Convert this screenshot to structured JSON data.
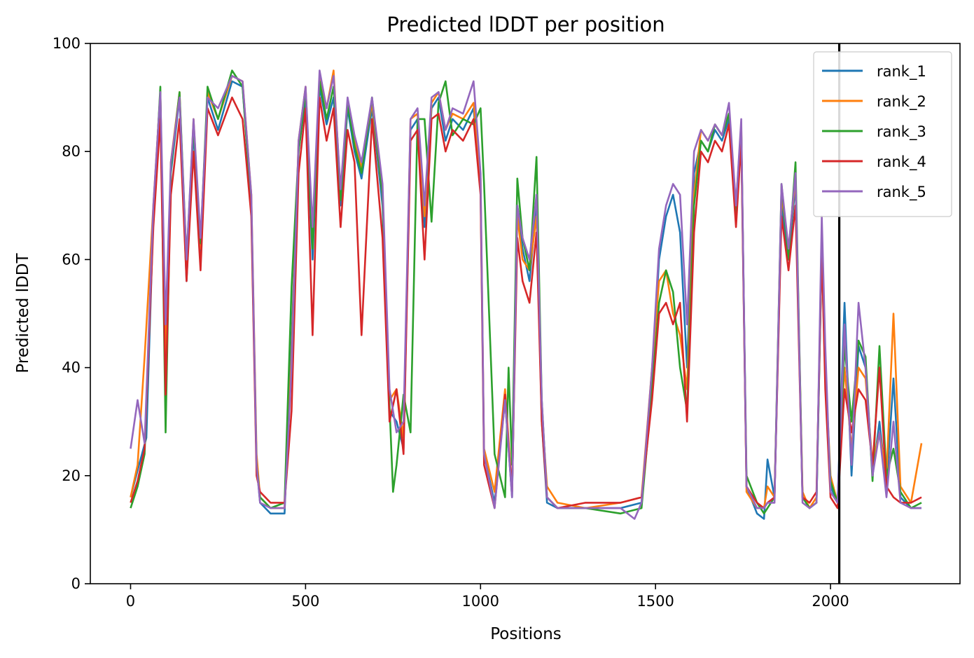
{
  "chart_data": {
    "type": "line",
    "title": "Predicted lDDT per position",
    "xlabel": "Positions",
    "ylabel": "Predicted lDDT",
    "xlim": [
      -115,
      2370
    ],
    "ylim": [
      0,
      100
    ],
    "xticks": [
      0,
      500,
      1000,
      1500,
      2000
    ],
    "yticks": [
      0,
      20,
      40,
      60,
      80,
      100
    ],
    "grid": false,
    "legend_position": "top-right",
    "vertical_line_x": 2025,
    "vertical_line_color": "#000000",
    "series": [
      {
        "name": "rank_1",
        "color": "#1f77b4",
        "x": [
          0,
          20,
          45,
          65,
          85,
          100,
          115,
          140,
          160,
          180,
          200,
          220,
          250,
          290,
          320,
          345,
          360,
          370,
          400,
          440,
          460,
          480,
          500,
          520,
          540,
          560,
          580,
          600,
          620,
          640,
          660,
          690,
          720,
          740,
          760,
          780,
          800,
          820,
          840,
          860,
          880,
          900,
          920,
          950,
          980,
          1000,
          1010,
          1040,
          1070,
          1090,
          1105,
          1120,
          1140,
          1160,
          1175,
          1190,
          1220,
          1300,
          1400,
          1460,
          1490,
          1510,
          1530,
          1550,
          1570,
          1590,
          1610,
          1630,
          1650,
          1670,
          1690,
          1710,
          1730,
          1745,
          1760,
          1790,
          1810,
          1820,
          1840,
          1860,
          1880,
          1900,
          1920,
          1940,
          1960,
          1975,
          1985,
          2000,
          2020,
          2040,
          2060,
          2080,
          2100,
          2120,
          2140,
          2160,
          2180,
          2200,
          2230,
          2260
        ],
        "values": [
          16,
          21,
          27,
          68,
          90,
          38,
          76,
          90,
          56,
          84,
          60,
          90,
          84,
          93,
          92,
          70,
          22,
          15,
          13,
          13,
          45,
          80,
          90,
          60,
          92,
          85,
          90,
          70,
          88,
          80,
          75,
          88,
          70,
          32,
          30,
          25,
          84,
          86,
          66,
          88,
          90,
          82,
          86,
          84,
          88,
          73,
          24,
          15,
          34,
          16,
          70,
          62,
          56,
          70,
          30,
          15,
          14,
          14,
          14,
          15,
          38,
          60,
          68,
          72,
          65,
          40,
          76,
          82,
          80,
          84,
          82,
          86,
          68,
          84,
          18,
          13,
          12,
          23,
          16,
          70,
          60,
          74,
          16,
          14,
          15,
          62,
          38,
          18,
          15,
          52,
          20,
          44,
          40,
          20,
          30,
          18,
          38,
          16,
          14,
          14
        ]
      },
      {
        "name": "rank_2",
        "color": "#ff7f0e",
        "x": [
          0,
          20,
          40,
          65,
          85,
          100,
          115,
          140,
          160,
          180,
          200,
          220,
          250,
          290,
          320,
          345,
          360,
          370,
          400,
          440,
          460,
          480,
          500,
          520,
          540,
          560,
          580,
          600,
          620,
          640,
          660,
          690,
          720,
          740,
          760,
          780,
          800,
          820,
          840,
          860,
          880,
          900,
          920,
          950,
          980,
          1000,
          1010,
          1040,
          1070,
          1090,
          1105,
          1120,
          1140,
          1160,
          1175,
          1190,
          1220,
          1300,
          1400,
          1460,
          1490,
          1510,
          1530,
          1550,
          1570,
          1590,
          1610,
          1630,
          1650,
          1670,
          1690,
          1710,
          1730,
          1745,
          1760,
          1790,
          1810,
          1820,
          1840,
          1860,
          1880,
          1900,
          1920,
          1940,
          1960,
          1975,
          1985,
          2000,
          2020,
          2040,
          2060,
          2080,
          2100,
          2120,
          2140,
          2160,
          2180,
          2200,
          2230,
          2260
        ],
        "values": [
          16,
          22,
          42,
          70,
          91,
          40,
          78,
          91,
          58,
          86,
          62,
          91,
          86,
          94,
          93,
          72,
          24,
          16,
          14,
          14,
          42,
          82,
          92,
          64,
          94,
          88,
          95,
          72,
          89,
          82,
          77,
          89,
          72,
          34,
          36,
          27,
          86,
          87,
          68,
          89,
          91,
          84,
          87,
          86,
          89,
          75,
          25,
          17,
          36,
          17,
          68,
          60,
          58,
          68,
          32,
          18,
          15,
          14,
          15,
          16,
          40,
          56,
          58,
          50,
          46,
          36,
          72,
          84,
          82,
          85,
          83,
          87,
          70,
          85,
          17,
          14,
          14,
          18,
          16,
          72,
          62,
          75,
          17,
          14,
          16,
          64,
          40,
          20,
          15,
          40,
          25,
          40,
          38,
          22,
          28,
          20,
          50,
          18,
          15,
          26
        ]
      },
      {
        "name": "rank_3",
        "color": "#2ca02c",
        "x": [
          0,
          20,
          40,
          65,
          85,
          100,
          115,
          140,
          160,
          180,
          200,
          220,
          250,
          290,
          320,
          345,
          360,
          370,
          400,
          440,
          460,
          480,
          500,
          520,
          540,
          560,
          580,
          600,
          620,
          640,
          660,
          690,
          720,
          740,
          750,
          760,
          780,
          800,
          820,
          840,
          860,
          880,
          900,
          920,
          950,
          980,
          1000,
          1010,
          1040,
          1070,
          1080,
          1090,
          1105,
          1120,
          1140,
          1160,
          1175,
          1190,
          1220,
          1300,
          1400,
          1460,
          1490,
          1510,
          1530,
          1550,
          1570,
          1590,
          1610,
          1630,
          1650,
          1670,
          1690,
          1710,
          1730,
          1745,
          1760,
          1790,
          1810,
          1820,
          1840,
          1860,
          1880,
          1900,
          1920,
          1940,
          1960,
          1975,
          1985,
          2000,
          2020,
          2040,
          2060,
          2080,
          2100,
          2120,
          2140,
          2160,
          2180,
          2200,
          2230,
          2260
        ],
        "values": [
          14,
          18,
          24,
          68,
          92,
          28,
          77,
          91,
          60,
          85,
          63,
          92,
          86,
          95,
          92,
          70,
          22,
          16,
          14,
          15,
          55,
          80,
          91,
          62,
          93,
          86,
          92,
          71,
          89,
          81,
          76,
          90,
          72,
          33,
          17,
          22,
          35,
          28,
          86,
          86,
          67,
          89,
          93,
          83,
          86,
          85,
          88,
          74,
          24,
          16,
          40,
          22,
          75,
          64,
          58,
          79,
          34,
          16,
          14,
          14,
          13,
          14,
          36,
          52,
          58,
          54,
          40,
          32,
          70,
          82,
          80,
          85,
          83,
          87,
          69,
          84,
          20,
          15,
          13,
          14,
          16,
          74,
          60,
          78,
          16,
          14,
          15,
          62,
          40,
          19,
          15,
          44,
          30,
          45,
          42,
          19,
          44,
          20,
          25,
          17,
          14,
          15
        ]
      },
      {
        "name": "rank_4",
        "color": "#d62728",
        "x": [
          0,
          20,
          40,
          65,
          85,
          100,
          115,
          140,
          160,
          180,
          200,
          220,
          250,
          290,
          320,
          345,
          360,
          370,
          400,
          440,
          460,
          480,
          500,
          520,
          540,
          560,
          580,
          600,
          620,
          640,
          660,
          690,
          720,
          740,
          760,
          780,
          800,
          820,
          840,
          860,
          880,
          900,
          920,
          950,
          980,
          1000,
          1010,
          1040,
          1070,
          1090,
          1105,
          1120,
          1140,
          1160,
          1175,
          1190,
          1220,
          1300,
          1400,
          1460,
          1490,
          1510,
          1530,
          1550,
          1570,
          1590,
          1610,
          1630,
          1650,
          1670,
          1690,
          1710,
          1730,
          1745,
          1760,
          1790,
          1810,
          1820,
          1840,
          1860,
          1880,
          1900,
          1920,
          1940,
          1960,
          1975,
          1985,
          2000,
          2020,
          2040,
          2060,
          2080,
          2100,
          2120,
          2140,
          2160,
          2180,
          2200,
          2230,
          2260
        ],
        "values": [
          15,
          19,
          25,
          66,
          86,
          35,
          72,
          86,
          56,
          80,
          58,
          88,
          83,
          90,
          86,
          68,
          20,
          17,
          15,
          15,
          32,
          76,
          88,
          46,
          90,
          82,
          88,
          66,
          84,
          78,
          46,
          86,
          64,
          30,
          36,
          24,
          82,
          84,
          60,
          86,
          87,
          80,
          84,
          82,
          86,
          72,
          22,
          14,
          35,
          17,
          64,
          56,
          52,
          65,
          30,
          16,
          14,
          15,
          15,
          16,
          34,
          50,
          52,
          48,
          52,
          30,
          65,
          80,
          78,
          82,
          80,
          85,
          66,
          82,
          18,
          15,
          14,
          15,
          16,
          68,
          58,
          70,
          16,
          15,
          17,
          62,
          36,
          16,
          14,
          36,
          28,
          36,
          34,
          22,
          40,
          18,
          16,
          15,
          15,
          16
        ]
      },
      {
        "name": "rank_5",
        "color": "#9467bd",
        "x": [
          0,
          20,
          40,
          65,
          85,
          100,
          115,
          140,
          160,
          180,
          200,
          220,
          250,
          290,
          320,
          345,
          360,
          370,
          400,
          440,
          460,
          480,
          500,
          520,
          540,
          560,
          580,
          600,
          620,
          640,
          660,
          690,
          720,
          740,
          760,
          780,
          800,
          820,
          840,
          860,
          880,
          900,
          920,
          950,
          980,
          1000,
          1010,
          1040,
          1070,
          1090,
          1105,
          1120,
          1140,
          1160,
          1175,
          1190,
          1220,
          1300,
          1400,
          1440,
          1460,
          1490,
          1510,
          1530,
          1550,
          1570,
          1590,
          1610,
          1630,
          1650,
          1670,
          1690,
          1710,
          1730,
          1745,
          1760,
          1790,
          1810,
          1820,
          1840,
          1860,
          1880,
          1900,
          1920,
          1940,
          1960,
          1975,
          1985,
          2000,
          2020,
          2040,
          2060,
          2080,
          2100,
          2120,
          2140,
          2160,
          2180,
          2200,
          2230,
          2260
        ],
        "values": [
          25,
          34,
          26,
          70,
          91,
          48,
          78,
          90,
          60,
          86,
          64,
          90,
          88,
          94,
          93,
          72,
          22,
          15,
          14,
          14,
          40,
          82,
          92,
          66,
          95,
          88,
          94,
          73,
          90,
          83,
          78,
          90,
          74,
          36,
          28,
          30,
          86,
          88,
          70,
          90,
          91,
          84,
          88,
          87,
          93,
          76,
          24,
          14,
          34,
          16,
          70,
          64,
          60,
          72,
          34,
          16,
          14,
          14,
          14,
          12,
          15,
          40,
          62,
          70,
          74,
          72,
          48,
          80,
          84,
          82,
          85,
          83,
          89,
          70,
          86,
          18,
          14,
          14,
          15,
          15,
          74,
          62,
          76,
          15,
          14,
          15,
          68,
          44,
          17,
          15,
          48,
          22,
          52,
          40,
          20,
          28,
          16,
          30,
          15,
          14,
          14
        ]
      }
    ]
  }
}
